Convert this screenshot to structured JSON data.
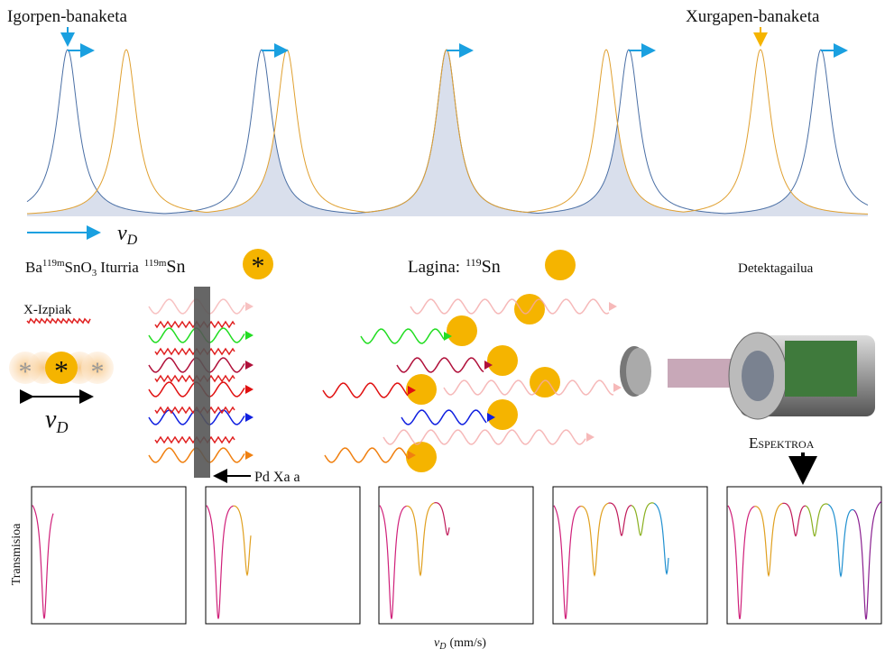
{
  "emission_label": "Igorpen-banaketa",
  "absorption_label": "Xurgapen-banaketa",
  "top_axis_symbol": [
    "v",
    "D"
  ],
  "source": {
    "formula": [
      "Ba",
      "119m",
      "SnO",
      "3"
    ],
    "label": "Iturria",
    "isotope": [
      "119m",
      "Sn"
    ]
  },
  "sample": {
    "label": "Lagina:",
    "isotope": [
      "119",
      "Sn"
    ]
  },
  "detector_label": "Detektagailua",
  "xray_label": "X-Izpiak",
  "source_motion_symbol": [
    "v",
    "D"
  ],
  "foil_label": "Pd Xa a",
  "spectrum_label": "Espektroa",
  "y_label": "Transmisioa",
  "x_label": {
    "symbol": [
      "v",
      "D"
    ],
    "unit": "(mm/s)"
  }
}
